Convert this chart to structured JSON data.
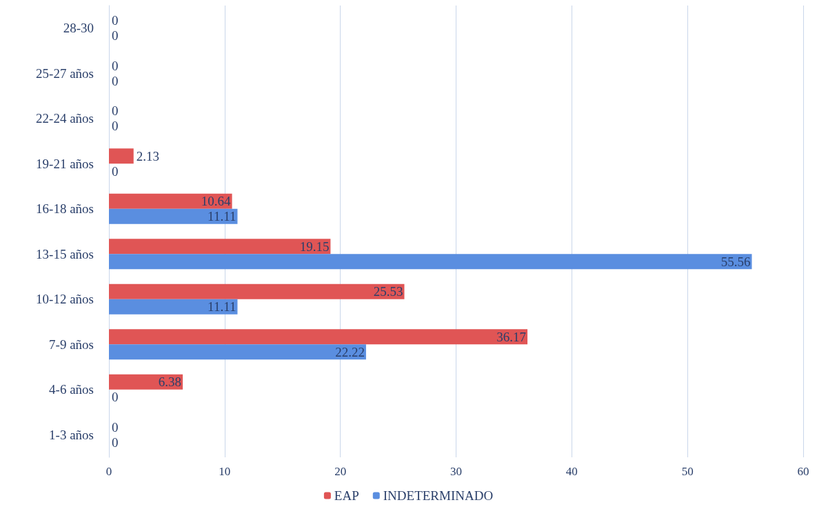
{
  "chart_data": {
    "type": "bar",
    "orientation": "horizontal",
    "categories": [
      "28-30",
      "25-27 años",
      "22-24 años",
      "19-21 años",
      "16-18 años",
      "13-15 años",
      "10-12 años",
      "7-9 años",
      "4-6 años",
      "1-3 años"
    ],
    "series": [
      {
        "name": "EAP",
        "color": "#e05555",
        "values": [
          0,
          0,
          0,
          2.13,
          10.64,
          19.15,
          25.53,
          36.17,
          6.38,
          0
        ]
      },
      {
        "name": "INDETERMINADO",
        "color": "#5a8ee0",
        "values": [
          0,
          0,
          0,
          0,
          11.11,
          55.56,
          11.11,
          22.22,
          0,
          0
        ]
      }
    ],
    "xlim": [
      0,
      60
    ],
    "xticks": [
      0,
      10,
      20,
      30,
      40,
      50,
      60
    ],
    "grid": "x",
    "legend": "bottom",
    "data_labels": true
  }
}
